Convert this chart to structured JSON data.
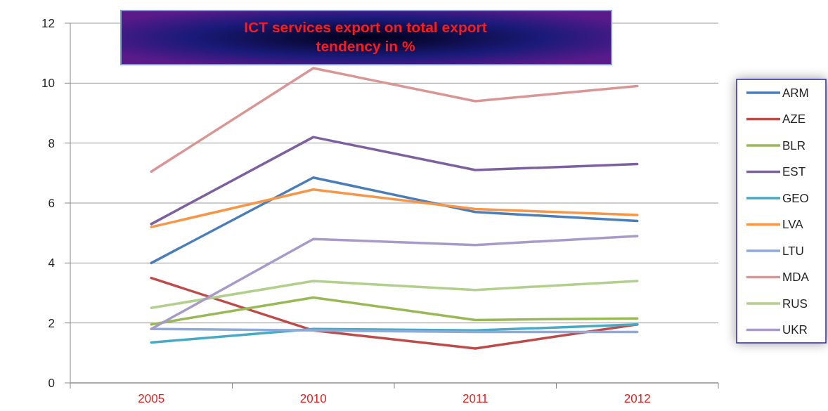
{
  "chart_data": {
    "type": "line",
    "title": "ICT services export on total export tendency in %",
    "categories": [
      "2005",
      "2010",
      "2011",
      "2012"
    ],
    "series": [
      {
        "name": "ARM",
        "color": "#4a7ebb",
        "values": [
          4.0,
          6.85,
          5.7,
          5.4
        ]
      },
      {
        "name": "AZE",
        "color": "#be4b48",
        "values": [
          3.5,
          1.75,
          1.15,
          1.95
        ]
      },
      {
        "name": "BLR",
        "color": "#98b954",
        "values": [
          1.95,
          2.85,
          2.1,
          2.15
        ]
      },
      {
        "name": "EST",
        "color": "#7d60a0",
        "values": [
          5.3,
          8.2,
          7.1,
          7.3
        ]
      },
      {
        "name": "GEO",
        "color": "#46aac5",
        "values": [
          1.35,
          1.8,
          1.75,
          1.95
        ]
      },
      {
        "name": "LVA",
        "color": "#f79646",
        "values": [
          5.2,
          6.45,
          5.8,
          5.6
        ]
      },
      {
        "name": "LTU",
        "color": "#8ea9db",
        "values": [
          1.8,
          1.75,
          1.7,
          1.7
        ]
      },
      {
        "name": "MDA",
        "color": "#d99694",
        "values": [
          7.05,
          10.5,
          9.4,
          9.9
        ]
      },
      {
        "name": "RUS",
        "color": "#b3cf8c",
        "values": [
          2.5,
          3.4,
          3.1,
          3.4
        ]
      },
      {
        "name": "UKR",
        "color": "#a99bc9",
        "values": [
          1.8,
          4.8,
          4.6,
          4.9
        ]
      }
    ],
    "ylim": [
      0,
      12
    ],
    "yticks": [
      0,
      2,
      4,
      6,
      8,
      10,
      12
    ],
    "grid": "y",
    "legend": "right",
    "marker": "none",
    "line_style": "solid"
  }
}
